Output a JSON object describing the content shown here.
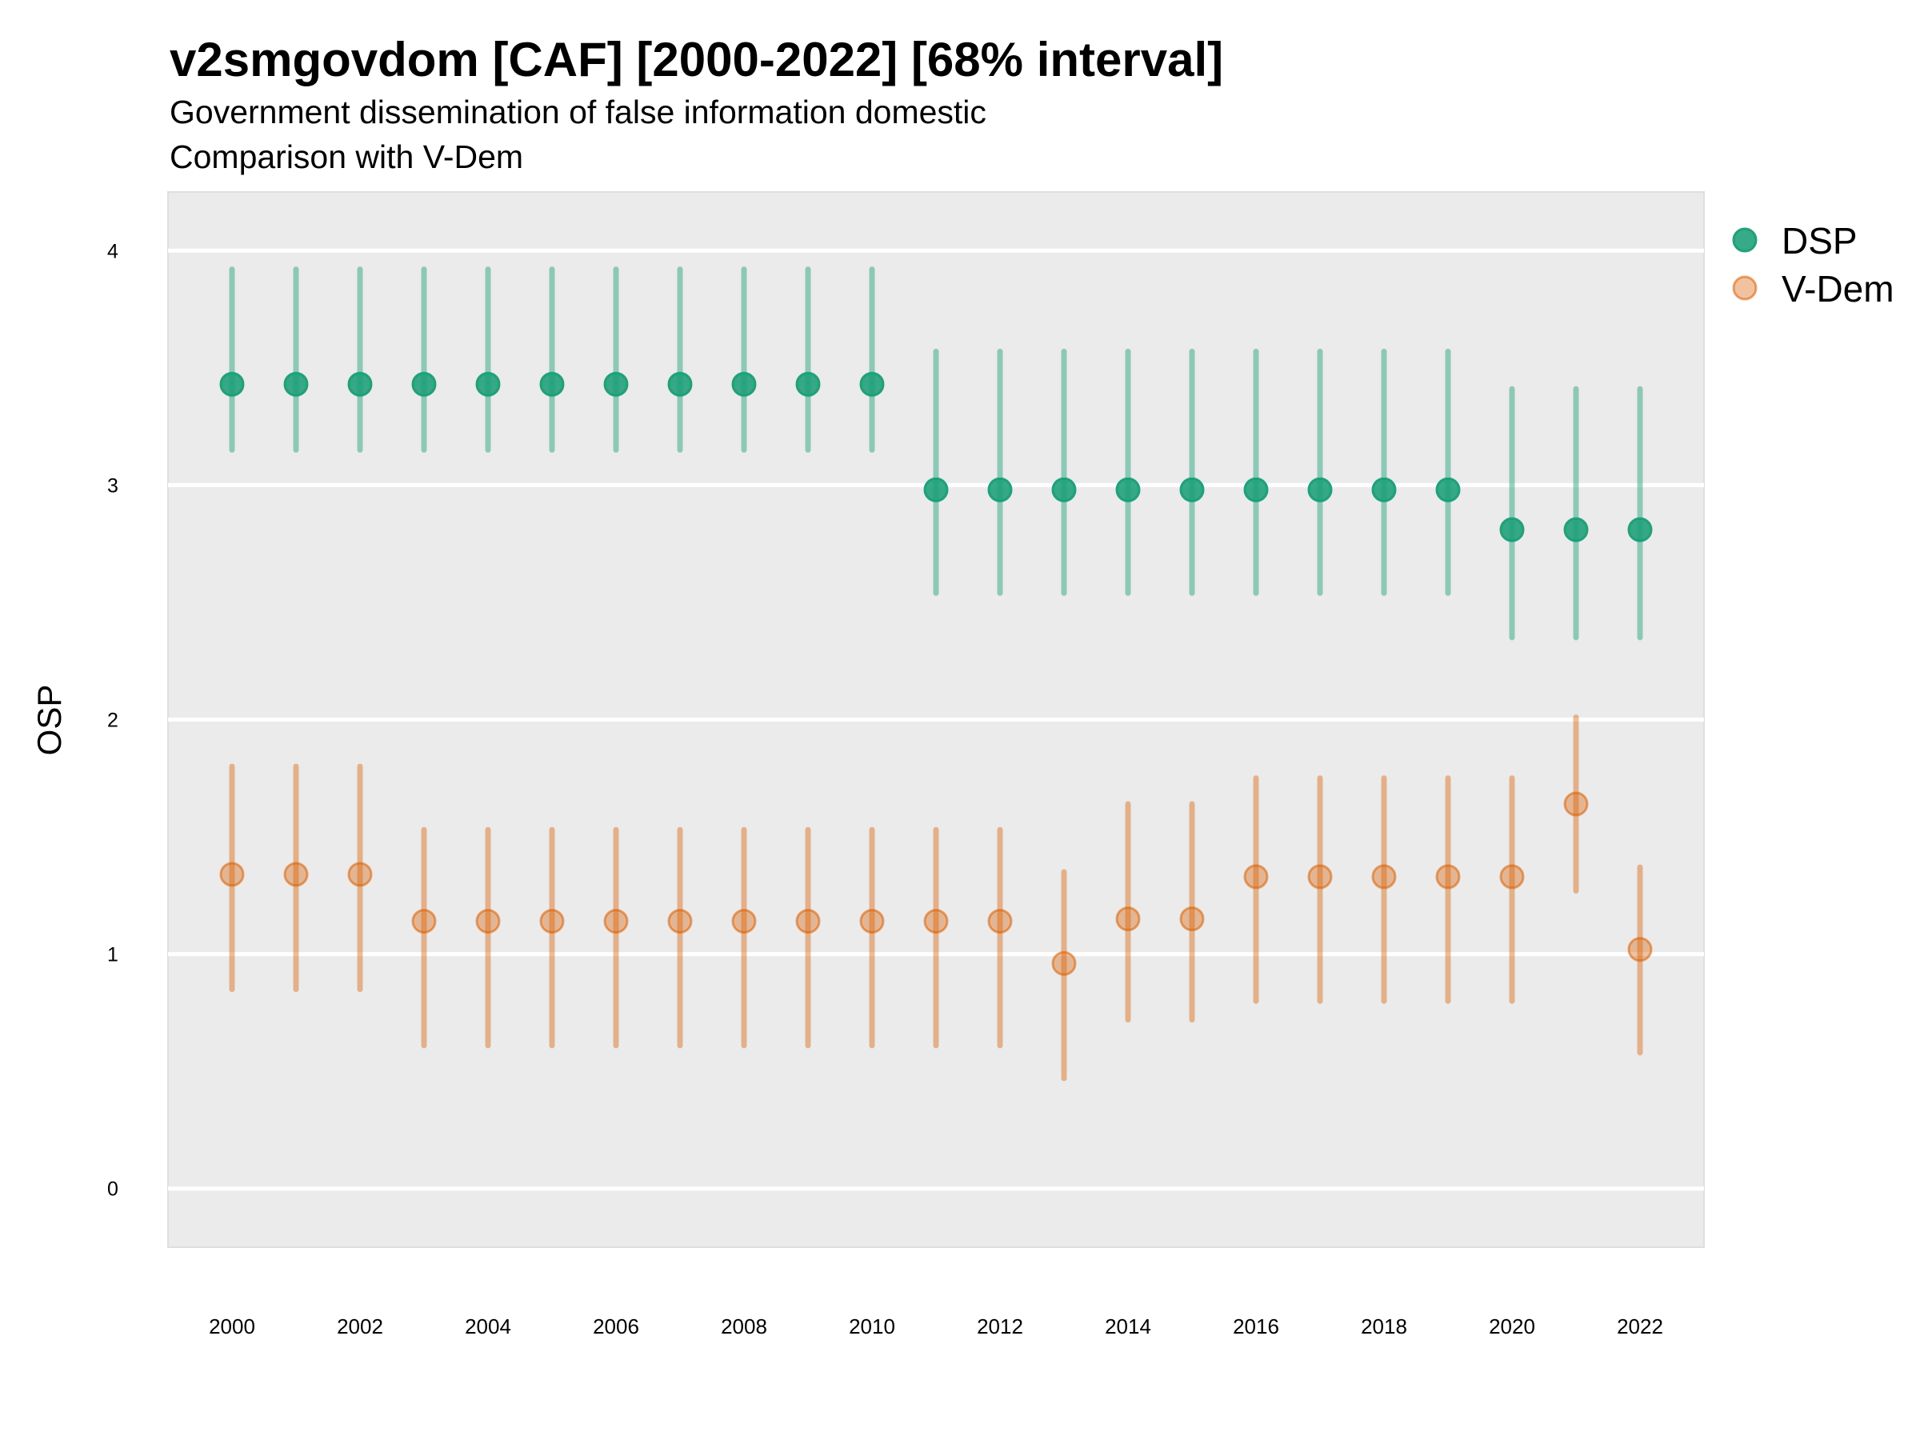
{
  "header": {
    "title": "v2smgovdom [CAF] [2000-2022] [68% interval]",
    "subtitle": "Government dissemination of false information domestic",
    "subtitle2": "Comparison with V-Dem"
  },
  "chart_data": {
    "type": "scatter",
    "subtype": "pointrange",
    "title": "v2smgovdom [CAF] [2000-2022] [68% interval]",
    "xlabel": "",
    "ylabel": "OSP",
    "xlim": [
      1999,
      2023
    ],
    "ylim": [
      -0.25,
      4.25
    ],
    "grid": true,
    "legend_position": "right",
    "x_ticks": [
      "2000",
      "2002",
      "2004",
      "2006",
      "2008",
      "2010",
      "2012",
      "2014",
      "2016",
      "2018",
      "2020",
      "2022"
    ],
    "y_ticks": [
      "0",
      "1",
      "2",
      "3",
      "4"
    ],
    "x": [
      2000,
      2001,
      2002,
      2003,
      2004,
      2005,
      2006,
      2007,
      2008,
      2009,
      2010,
      2011,
      2012,
      2013,
      2014,
      2015,
      2016,
      2017,
      2018,
      2019,
      2020,
      2021,
      2022
    ],
    "series": [
      {
        "name": "DSP",
        "color": "#1b9e77",
        "values": [
          3.43,
          3.43,
          3.43,
          3.43,
          3.43,
          3.43,
          3.43,
          3.43,
          3.43,
          3.43,
          3.43,
          2.98,
          2.98,
          2.98,
          2.98,
          2.98,
          2.98,
          2.98,
          2.98,
          2.98,
          2.81,
          2.81,
          2.81
        ],
        "lower": [
          3.15,
          3.15,
          3.15,
          3.15,
          3.15,
          3.15,
          3.15,
          3.15,
          3.15,
          3.15,
          3.15,
          2.54,
          2.54,
          2.54,
          2.54,
          2.54,
          2.54,
          2.54,
          2.54,
          2.54,
          2.35,
          2.35,
          2.35
        ],
        "upper": [
          3.92,
          3.92,
          3.92,
          3.92,
          3.92,
          3.92,
          3.92,
          3.92,
          3.92,
          3.92,
          3.92,
          3.57,
          3.57,
          3.57,
          3.57,
          3.57,
          3.57,
          3.57,
          3.57,
          3.57,
          3.41,
          3.41,
          3.41
        ]
      },
      {
        "name": "V-Dem",
        "color": "#d95f02",
        "values": [
          1.34,
          1.34,
          1.34,
          1.14,
          1.14,
          1.14,
          1.14,
          1.14,
          1.14,
          1.14,
          1.14,
          1.14,
          1.14,
          0.96,
          1.15,
          1.15,
          1.33,
          1.33,
          1.33,
          1.33,
          1.33,
          1.64,
          1.02
        ],
        "lower": [
          0.85,
          0.85,
          0.85,
          0.61,
          0.61,
          0.61,
          0.61,
          0.61,
          0.61,
          0.61,
          0.61,
          0.61,
          0.61,
          0.47,
          0.72,
          0.72,
          0.8,
          0.8,
          0.8,
          0.8,
          0.8,
          1.27,
          0.58
        ],
        "upper": [
          1.8,
          1.8,
          1.8,
          1.53,
          1.53,
          1.53,
          1.53,
          1.53,
          1.53,
          1.53,
          1.53,
          1.53,
          1.53,
          1.35,
          1.64,
          1.64,
          1.75,
          1.75,
          1.75,
          1.75,
          1.75,
          2.01,
          1.37
        ]
      }
    ]
  }
}
